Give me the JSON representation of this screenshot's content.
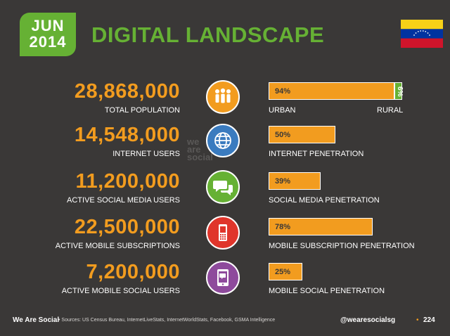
{
  "header": {
    "month": "JUN",
    "year": "2014",
    "title": "DIGITAL LANDSCAPE",
    "flag_country": "Venezuela"
  },
  "watermark": [
    "we",
    "are",
    "social"
  ],
  "stats": [
    {
      "value": "28,868,000",
      "caption": "TOTAL POPULATION",
      "icon": "people-icon",
      "icon_color": "#f29c1f",
      "bar_percent": 94,
      "bar_label": "94%",
      "bar_caption": "URBAN",
      "secondary_percent": 6,
      "secondary_label": "6%",
      "secondary_caption": "RURAL"
    },
    {
      "value": "14,548,000",
      "caption": "INTERNET USERS",
      "icon": "globe-icon",
      "icon_color": "#3a7bbf",
      "bar_percent": 50,
      "bar_label": "50%",
      "bar_caption": "INTERNET PENETRATION"
    },
    {
      "value": "11,200,000",
      "caption": "ACTIVE SOCIAL MEDIA USERS",
      "icon": "chat-bubbles-icon",
      "icon_color": "#66b134",
      "bar_percent": 39,
      "bar_label": "39%",
      "bar_caption": "SOCIAL MEDIA PENETRATION"
    },
    {
      "value": "22,500,000",
      "caption": "ACTIVE MOBILE SUBSCRIPTIONS",
      "icon": "mobile-phone-icon",
      "icon_color": "#e0352b",
      "bar_percent": 78,
      "bar_label": "78%",
      "bar_caption": "MOBILE SUBSCRIPTION PENETRATION"
    },
    {
      "value": "7,200,000",
      "caption": "ACTIVE MOBILE SOCIAL USERS",
      "icon": "mobile-social-icon",
      "icon_color": "#8e4a9c",
      "bar_percent": 25,
      "bar_label": "25%",
      "bar_caption": "MOBILE SOCIAL PENETRATION"
    }
  ],
  "footer": {
    "brand": "We Are Social",
    "sources": "•  Sources: US Census Bureau, InternetLiveStats, InternetWorldStats, Facebook, GSMA Intelligence",
    "handle": "@wearesocialsg",
    "separator": "•",
    "page": "224"
  },
  "colors": {
    "background": "#3a3837",
    "accent_orange": "#f29c1f",
    "accent_green": "#66b134"
  }
}
